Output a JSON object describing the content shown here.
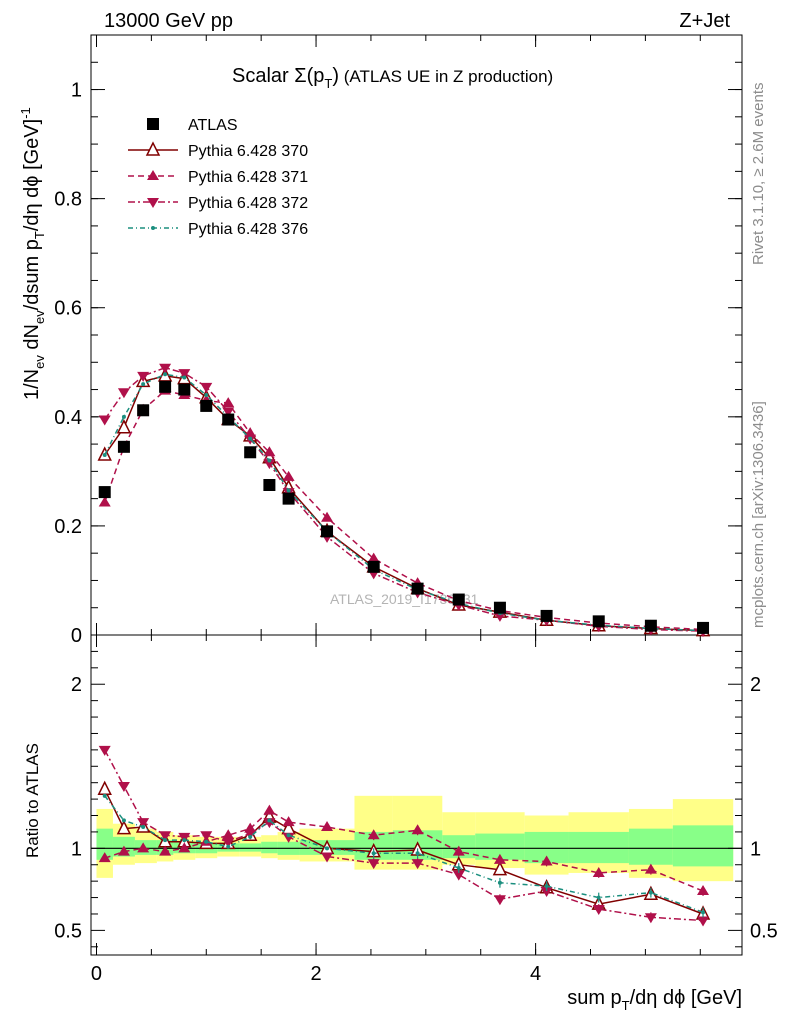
{
  "header": {
    "energy_label": "13000 GeV pp",
    "process_label": "Z+Jet"
  },
  "title_prefix": "Scalar ",
  "title_sigma": "Σ(p",
  "title_sub": "T",
  "title_close": ")",
  "title_suffix": " (ATLAS UE in Z production)",
  "ylabel_main": "1/N",
  "ylabel_ratio": "Ratio to ATLAS",
  "xlabel": "sum p",
  "xlabel_rest": "/dη dϕ [GeV]",
  "watermark": "ATLAS_2019_I1736531",
  "side_rivet": "Rivet 3.1.10, ≥ 2.6M events",
  "side_mcplots": "mcplots.cern.ch [arXiv:1306.3436]",
  "colors": {
    "data": "#000000",
    "p370": "#800000",
    "p371": "#b0104a",
    "p372": "#b0104a",
    "p376": "#1b8f7f",
    "band_yellow": "#ffff88",
    "band_green": "#88ff88"
  },
  "chart_data": {
    "type": "scatter",
    "x": [
      0.075,
      0.25,
      0.425,
      0.625,
      0.8,
      1.0,
      1.2,
      1.4,
      1.575,
      1.75,
      2.1,
      2.525,
      2.925,
      3.3,
      3.675,
      4.1,
      4.575,
      5.05,
      5.525
    ],
    "main": {
      "ylim": [
        0,
        1.1
      ],
      "yticks": [
        0,
        0.2,
        0.4,
        0.6,
        0.8,
        1
      ],
      "ytick_labels": [
        "0",
        "0.2",
        "0.4",
        "0.6",
        "0.8",
        "1"
      ],
      "ylabel": "1/N_ev dN_ev/dsum p_T/dη dϕ [GeV]^-1",
      "series": [
        {
          "name": "ATLAS",
          "values": [
            0.262,
            0.345,
            0.412,
            0.455,
            0.45,
            0.42,
            0.395,
            0.335,
            0.275,
            0.25,
            0.19,
            0.125,
            0.085,
            0.065,
            0.05,
            0.035,
            0.025,
            0.017,
            0.013
          ]
        },
        {
          "name": "Pythia 6.428 370",
          "values": [
            0.33,
            0.38,
            0.465,
            0.475,
            0.47,
            0.435,
            0.395,
            0.365,
            0.325,
            0.27,
            0.19,
            0.125,
            0.085,
            0.055,
            0.042,
            0.027,
            0.017,
            0.012,
            0.008
          ]
        },
        {
          "name": "Pythia 6.428 371",
          "values": [
            0.243,
            0.345,
            0.413,
            0.448,
            0.44,
            0.43,
            0.425,
            0.37,
            0.335,
            0.29,
            0.215,
            0.14,
            0.095,
            0.063,
            0.045,
            0.032,
            0.022,
            0.015,
            0.01
          ]
        },
        {
          "name": "Pythia 6.428 372",
          "values": [
            0.395,
            0.445,
            0.475,
            0.49,
            0.48,
            0.455,
            0.41,
            0.36,
            0.315,
            0.262,
            0.18,
            0.113,
            0.078,
            0.055,
            0.035,
            0.027,
            0.016,
            0.01,
            0.007
          ]
        },
        {
          "name": "Pythia 6.428 376",
          "values": [
            0.33,
            0.4,
            0.46,
            0.478,
            0.472,
            0.44,
            0.4,
            0.36,
            0.32,
            0.265,
            0.19,
            0.12,
            0.083,
            0.058,
            0.04,
            0.027,
            0.018,
            0.012,
            0.008
          ]
        }
      ]
    },
    "ratio": {
      "ylim": [
        0.35,
        2.3
      ],
      "yticks": [
        0.5,
        1,
        2
      ],
      "ytick_labels": [
        "0.5",
        "1",
        "2"
      ],
      "ylabel": "Ratio to ATLAS",
      "bin_edges": [
        0,
        0.15,
        0.35,
        0.55,
        0.7,
        0.9,
        1.1,
        1.3,
        1.5,
        1.65,
        1.85,
        2.35,
        2.7,
        3.15,
        3.45,
        3.9,
        4.3,
        4.85,
        5.25,
        5.8
      ],
      "band_yellow": [
        [
          0.82,
          1.24
        ],
        [
          0.9,
          1.15
        ],
        [
          0.91,
          1.12
        ],
        [
          0.92,
          1.1
        ],
        [
          0.93,
          1.08
        ],
        [
          0.94,
          1.07
        ],
        [
          0.95,
          1.07
        ],
        [
          0.95,
          1.07
        ],
        [
          0.94,
          1.08
        ],
        [
          0.93,
          1.1
        ],
        [
          0.92,
          1.12
        ],
        [
          0.87,
          1.32
        ],
        [
          0.87,
          1.32
        ],
        [
          0.9,
          1.22
        ],
        [
          0.88,
          1.22
        ],
        [
          0.84,
          1.2
        ],
        [
          0.85,
          1.22
        ],
        [
          0.82,
          1.24
        ],
        [
          0.8,
          1.3
        ]
      ],
      "band_green": [
        [
          0.93,
          1.12
        ],
        [
          0.95,
          1.07
        ],
        [
          0.96,
          1.05
        ],
        [
          0.96,
          1.05
        ],
        [
          0.97,
          1.04
        ],
        [
          0.97,
          1.03
        ],
        [
          0.98,
          1.03
        ],
        [
          0.98,
          1.03
        ],
        [
          0.97,
          1.04
        ],
        [
          0.96,
          1.04
        ],
        [
          0.96,
          1.05
        ],
        [
          0.93,
          1.1
        ],
        [
          0.93,
          1.11
        ],
        [
          0.94,
          1.08
        ],
        [
          0.93,
          1.09
        ],
        [
          0.91,
          1.1
        ],
        [
          0.91,
          1.1
        ],
        [
          0.9,
          1.12
        ],
        [
          0.89,
          1.14
        ]
      ],
      "series": [
        {
          "name": "Pythia 6.428 370",
          "values": [
            1.36,
            1.12,
            1.13,
            1.04,
            1.04,
            1.03,
            1.03,
            1.08,
            1.19,
            1.12,
            1.0,
            0.98,
            0.99,
            0.9,
            0.87,
            0.76,
            0.66,
            0.72,
            0.6
          ]
        },
        {
          "name": "Pythia 6.428 371",
          "values": [
            0.94,
            0.98,
            1.0,
            0.98,
            1.0,
            1.04,
            1.08,
            1.12,
            1.23,
            1.16,
            1.13,
            1.08,
            1.11,
            0.98,
            0.93,
            0.92,
            0.85,
            0.87,
            0.74
          ]
        },
        {
          "name": "Pythia 6.428 372",
          "values": [
            1.6,
            1.38,
            1.16,
            1.08,
            1.07,
            1.08,
            1.04,
            1.09,
            1.16,
            1.07,
            0.95,
            0.91,
            0.91,
            0.84,
            0.69,
            0.74,
            0.63,
            0.58,
            0.56
          ]
        },
        {
          "name": "Pythia 6.428 376",
          "values": [
            1.32,
            1.17,
            1.13,
            1.05,
            1.05,
            1.04,
            1.01,
            1.07,
            1.17,
            1.08,
            1.0,
            0.97,
            0.97,
            0.88,
            0.79,
            0.77,
            0.7,
            0.73,
            0.61
          ]
        }
      ]
    },
    "xlim": [
      -0.05,
      5.88
    ],
    "xticks": [
      0,
      2,
      4
    ],
    "xtick_labels": [
      "0",
      "2",
      "4"
    ],
    "xlabel": "sum p_T/dη dϕ [GeV]",
    "legend_position": "top-left",
    "grid": false
  }
}
